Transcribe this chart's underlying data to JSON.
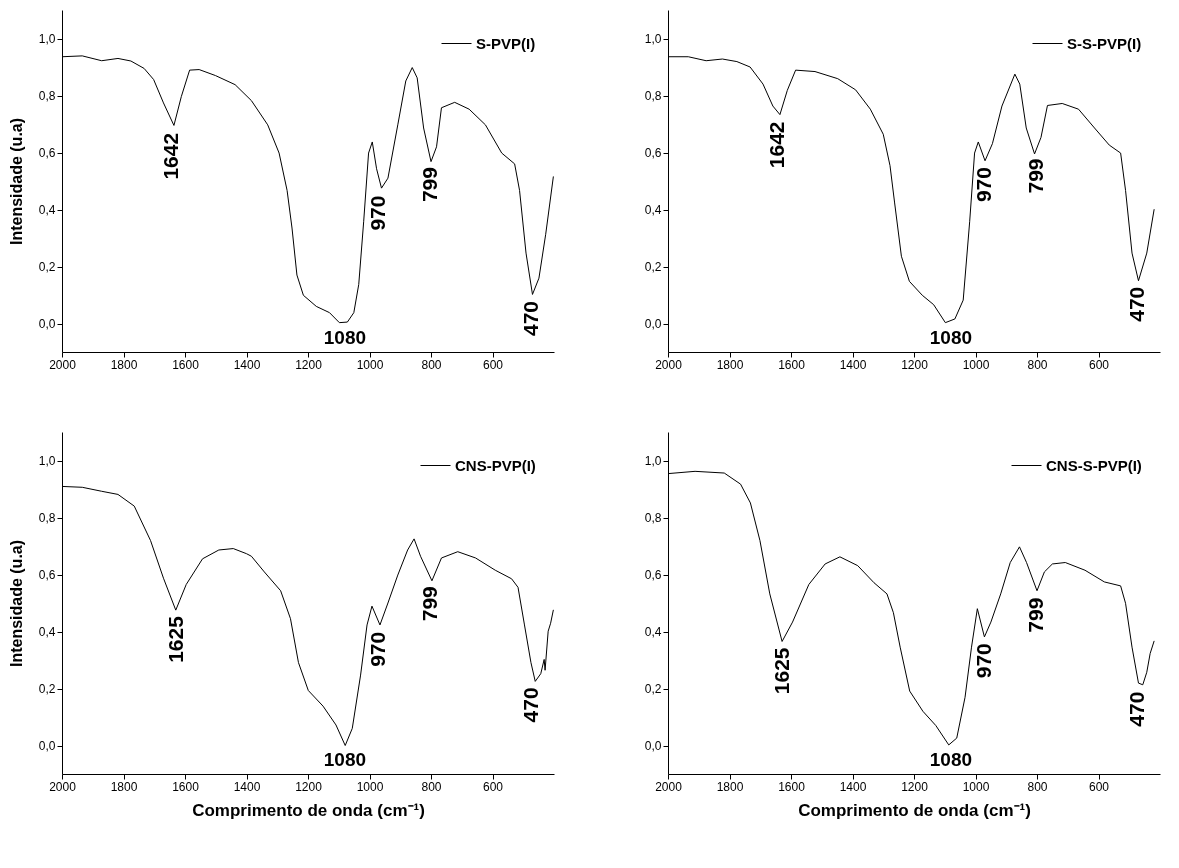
{
  "chart_data": [
    {
      "type": "line",
      "ylabel": "Intensidade (u.a)",
      "xlim": [
        2000,
        400
      ],
      "ylim": [
        -0.1,
        1.1
      ],
      "xticks": [
        2000,
        1800,
        1600,
        1400,
        1200,
        1000,
        800,
        600
      ],
      "yticks": [
        {
          "value": 0,
          "label": "0,0"
        },
        {
          "value": 0.2,
          "label": "0,2"
        },
        {
          "value": 0.4,
          "label": "0,4"
        },
        {
          "value": 0.6,
          "label": "0,6"
        },
        {
          "value": 0.8,
          "label": "0,8"
        },
        {
          "value": 1,
          "label": "1,0"
        }
      ],
      "legend": "top right",
      "series": [
        {
          "name": "S-PVP(I)",
          "color": "#000000",
          "x": [
            2000,
            1934,
            1871,
            1818,
            1776,
            1733,
            1702,
            1670,
            1636,
            1612,
            1585,
            1554,
            1501,
            1437,
            1384,
            1331,
            1294,
            1268,
            1252,
            1236,
            1215,
            1173,
            1130,
            1098,
            1072,
            1051,
            1035,
            1019,
            1003,
            991,
            977,
            961,
            940,
            908,
            882,
            861,
            845,
            824,
            800,
            782,
            766,
            723,
            676,
            623,
            570,
            528,
            512,
            491,
            470,
            449,
            427,
            402
          ],
          "values": [
            0.936,
            0.939,
            0.922,
            0.93,
            0.921,
            0.895,
            0.856,
            0.774,
            0.695,
            0.796,
            0.889,
            0.891,
            0.87,
            0.838,
            0.782,
            0.697,
            0.598,
            0.467,
            0.335,
            0.17,
            0.099,
            0.06,
            0.038,
            0.003,
            0.005,
            0.038,
            0.137,
            0.357,
            0.598,
            0.637,
            0.543,
            0.475,
            0.51,
            0.697,
            0.851,
            0.898,
            0.862,
            0.686,
            0.568,
            0.62,
            0.757,
            0.776,
            0.752,
            0.697,
            0.598,
            0.56,
            0.467,
            0.247,
            0.102,
            0.159,
            0.313,
            0.516
          ]
        }
      ],
      "annotations": [
        {
          "text": "1642",
          "x": 1642,
          "y": 0.69
        },
        {
          "text": "1080",
          "x": 1080,
          "y": 0.0
        },
        {
          "text": "970",
          "x": 970,
          "y": 0.47
        },
        {
          "text": "799",
          "x": 799,
          "y": 0.57
        },
        {
          "text": "470",
          "x": 470,
          "y": 0.1
        }
      ]
    },
    {
      "type": "line",
      "xlim": [
        2000,
        400
      ],
      "ylim": [
        -0.1,
        1.1
      ],
      "xticks": [
        2000,
        1800,
        1600,
        1400,
        1200,
        1000,
        800,
        600
      ],
      "yticks": [
        {
          "value": 0,
          "label": "0,0"
        },
        {
          "value": 0.2,
          "label": "0,2"
        },
        {
          "value": 0.4,
          "label": "0,4"
        },
        {
          "value": 0.6,
          "label": "0,6"
        },
        {
          "value": 0.8,
          "label": "0,8"
        },
        {
          "value": 1,
          "label": "1,0"
        }
      ],
      "legend": "top right",
      "series": [
        {
          "name": "S-S-PVP(I)",
          "color": "#000000",
          "x": [
            2000,
            1934,
            1876,
            1823,
            1776,
            1733,
            1691,
            1659,
            1636,
            1612,
            1585,
            1522,
            1448,
            1390,
            1342,
            1300,
            1278,
            1263,
            1241,
            1215,
            1173,
            1136,
            1098,
            1067,
            1040,
            1019,
            1003,
            991,
            969,
            945,
            914,
            872,
            856,
            835,
            808,
            787,
            766,
            718,
            665,
            613,
            565,
            528,
            512,
            491,
            470,
            443,
            419
          ],
          "values": [
            0.936,
            0.936,
            0.922,
            0.928,
            0.919,
            0.9,
            0.84,
            0.763,
            0.733,
            0.818,
            0.889,
            0.884,
            0.859,
            0.82,
            0.752,
            0.664,
            0.554,
            0.423,
            0.236,
            0.148,
            0.099,
            0.066,
            0.003,
            0.016,
            0.082,
            0.357,
            0.598,
            0.637,
            0.571,
            0.631,
            0.763,
            0.875,
            0.84,
            0.686,
            0.595,
            0.653,
            0.765,
            0.772,
            0.752,
            0.686,
            0.626,
            0.598,
            0.467,
            0.247,
            0.15,
            0.247,
            0.401
          ]
        }
      ],
      "annotations": [
        {
          "text": "1642",
          "x": 1642,
          "y": 0.73
        },
        {
          "text": "1080",
          "x": 1080,
          "y": 0.0
        },
        {
          "text": "970",
          "x": 970,
          "y": 0.57
        },
        {
          "text": "799",
          "x": 799,
          "y": 0.6
        },
        {
          "text": "470",
          "x": 470,
          "y": 0.15
        }
      ]
    },
    {
      "type": "line",
      "xlabel": "Comprimento de onda (cm⁻¹)",
      "ylabel": "Intensidade (u.a)",
      "xlim": [
        2000,
        400
      ],
      "ylim": [
        -0.1,
        1.1
      ],
      "xticks": [
        2000,
        1800,
        1600,
        1400,
        1200,
        1000,
        800,
        600
      ],
      "yticks": [
        {
          "value": 0,
          "label": "0,0"
        },
        {
          "value": 0.2,
          "label": "0,2"
        },
        {
          "value": 0.4,
          "label": "0,4"
        },
        {
          "value": 0.6,
          "label": "0,6"
        },
        {
          "value": 0.8,
          "label": "0,8"
        },
        {
          "value": 1,
          "label": "1,0"
        }
      ],
      "legend": "top right",
      "series": [
        {
          "name": "CNS-PVP(I)",
          "color": "#000000",
          "x": [
            2000,
            1934,
            1871,
            1818,
            1765,
            1712,
            1670,
            1630,
            1596,
            1543,
            1490,
            1443,
            1400,
            1384,
            1342,
            1289,
            1257,
            1231,
            1199,
            1151,
            1109,
            1079,
            1056,
            1029,
            1008,
            992,
            966,
            940,
            908,
            876,
            855,
            834,
            797,
            766,
            713,
            655,
            591,
            538,
            517,
            496,
            475,
            461,
            443,
            432,
            429,
            419,
            411,
            402
          ],
          "values": [
            0.909,
            0.906,
            0.892,
            0.881,
            0.84,
            0.719,
            0.587,
            0.475,
            0.565,
            0.655,
            0.686,
            0.691,
            0.673,
            0.664,
            0.609,
            0.543,
            0.445,
            0.291,
            0.193,
            0.138,
            0.072,
            0.0,
            0.06,
            0.247,
            0.423,
            0.489,
            0.423,
            0.5,
            0.598,
            0.686,
            0.725,
            0.664,
            0.578,
            0.658,
            0.68,
            0.658,
            0.615,
            0.585,
            0.555,
            0.423,
            0.291,
            0.225,
            0.252,
            0.302,
            0.264,
            0.401,
            0.429,
            0.476
          ]
        }
      ],
      "annotations": [
        {
          "text": "1625",
          "x": 1625,
          "y": 0.475
        },
        {
          "text": "1080",
          "x": 1080,
          "y": 0.0
        },
        {
          "text": "970",
          "x": 970,
          "y": 0.42
        },
        {
          "text": "799",
          "x": 799,
          "y": 0.58
        },
        {
          "text": "470",
          "x": 470,
          "y": 0.225
        }
      ]
    },
    {
      "type": "line",
      "xlabel": "Comprimento de onda (cm⁻¹)",
      "xlim": [
        2000,
        400
      ],
      "ylim": [
        -0.1,
        1.1
      ],
      "xticks": [
        2000,
        1800,
        1600,
        1400,
        1200,
        1000,
        800,
        600
      ],
      "yticks": [
        {
          "value": 0,
          "label": "0,0"
        },
        {
          "value": 0.2,
          "label": "0,2"
        },
        {
          "value": 0.4,
          "label": "0,4"
        },
        {
          "value": 0.6,
          "label": "0,6"
        },
        {
          "value": 0.8,
          "label": "0,8"
        },
        {
          "value": 1,
          "label": "1,0"
        }
      ],
      "legend": "top right",
      "series": [
        {
          "name": "CNS-S-PVP(I)",
          "color": "#000000",
          "x": [
            2000,
            1912,
            1817,
            1764,
            1732,
            1701,
            1669,
            1629,
            1595,
            1542,
            1489,
            1441,
            1383,
            1330,
            1288,
            1267,
            1245,
            1214,
            1171,
            1129,
            1087,
            1061,
            1034,
            1013,
            994,
            971,
            950,
            918,
            887,
            857,
            834,
            800,
            776,
            750,
            708,
            644,
            581,
            528,
            512,
            491,
            470,
            456,
            443,
            432,
            419
          ],
          "values": [
            0.954,
            0.962,
            0.956,
            0.917,
            0.851,
            0.719,
            0.532,
            0.365,
            0.433,
            0.565,
            0.637,
            0.662,
            0.631,
            0.571,
            0.532,
            0.466,
            0.345,
            0.191,
            0.12,
            0.07,
            0.002,
            0.026,
            0.169,
            0.345,
            0.48,
            0.381,
            0.433,
            0.532,
            0.642,
            0.697,
            0.642,
            0.543,
            0.609,
            0.637,
            0.642,
            0.615,
            0.574,
            0.56,
            0.499,
            0.345,
            0.219,
            0.213,
            0.257,
            0.323,
            0.367
          ]
        }
      ],
      "annotations": [
        {
          "text": "1625",
          "x": 1625,
          "y": 0.365
        },
        {
          "text": "1080",
          "x": 1080,
          "y": 0.0
        },
        {
          "text": "970",
          "x": 970,
          "y": 0.38
        },
        {
          "text": "799",
          "x": 799,
          "y": 0.54
        },
        {
          "text": "470",
          "x": 470,
          "y": 0.21
        }
      ]
    }
  ]
}
